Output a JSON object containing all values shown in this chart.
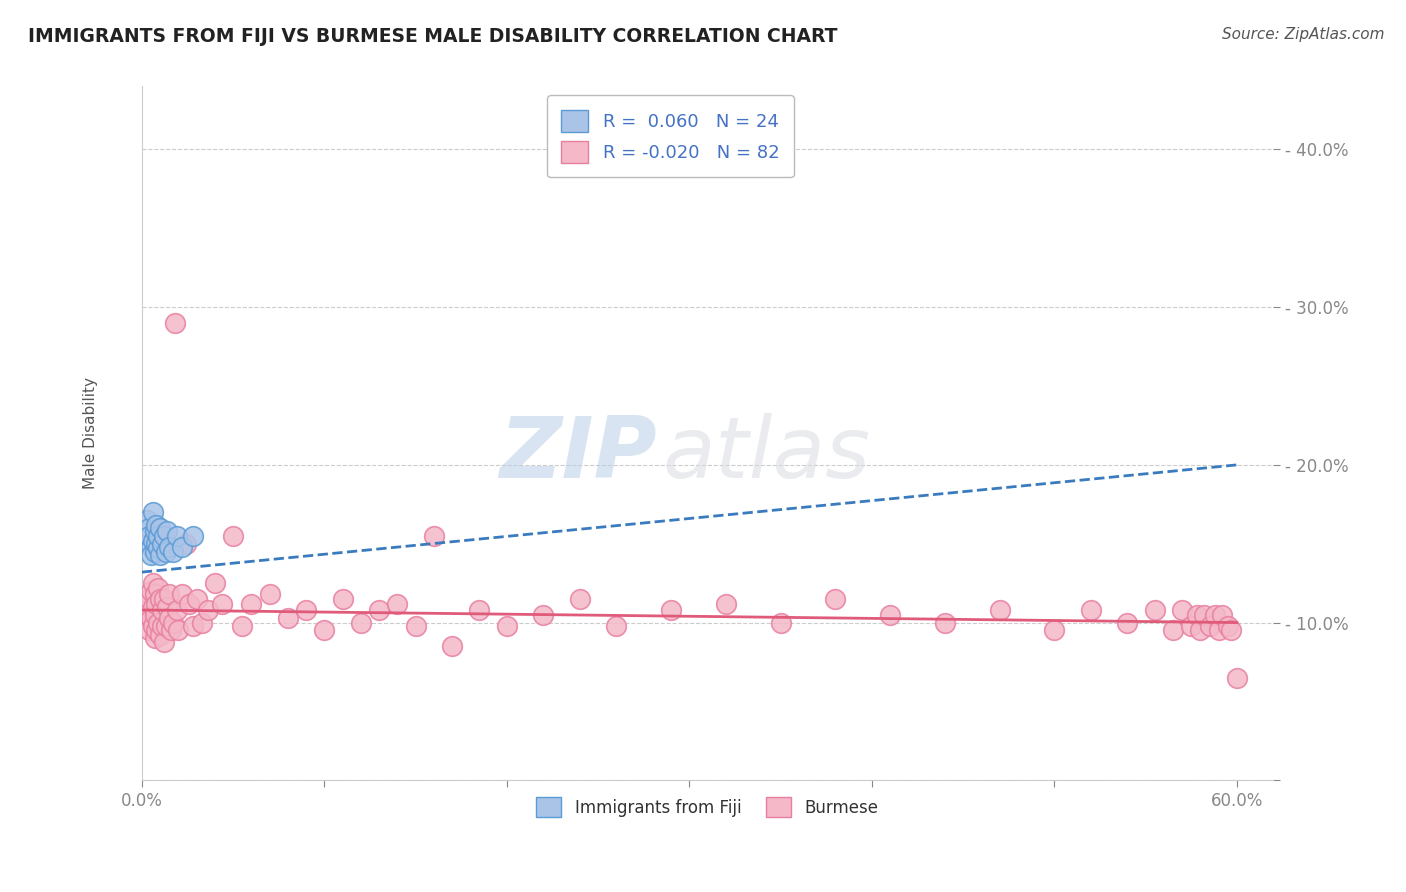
{
  "title": "IMMIGRANTS FROM FIJI VS BURMESE MALE DISABILITY CORRELATION CHART",
  "source": "Source: ZipAtlas.com",
  "ylabel_label": "Male Disability",
  "xlim": [
    0.0,
    0.62
  ],
  "ylim": [
    0.0,
    0.44
  ],
  "grid_color": "#cccccc",
  "background_color": "#ffffff",
  "fiji_color": "#aac4e8",
  "fiji_edge_color": "#5b9bd5",
  "burmese_color": "#f4b8c8",
  "burmese_edge_color": "#e87fa0",
  "fiji_R": 0.06,
  "fiji_N": 24,
  "burmese_R": -0.02,
  "burmese_N": 82,
  "fiji_trendline_color": "#3a7bbf",
  "burmese_trendline_color": "#e05a7a",
  "watermark_zip": "ZIP",
  "watermark_atlas": "atlas",
  "fiji_x": [
    0.003,
    0.004,
    0.004,
    0.005,
    0.005,
    0.006,
    0.006,
    0.007,
    0.007,
    0.008,
    0.008,
    0.009,
    0.009,
    0.01,
    0.01,
    0.011,
    0.012,
    0.013,
    0.014,
    0.015,
    0.017,
    0.019,
    0.022,
    0.028
  ],
  "fiji_y": [
    0.165,
    0.16,
    0.155,
    0.148,
    0.143,
    0.17,
    0.152,
    0.145,
    0.158,
    0.15,
    0.162,
    0.147,
    0.155,
    0.143,
    0.16,
    0.15,
    0.155,
    0.145,
    0.158,
    0.148,
    0.145,
    0.155,
    0.148,
    0.155
  ],
  "burmese_x": [
    0.003,
    0.004,
    0.004,
    0.005,
    0.005,
    0.006,
    0.006,
    0.006,
    0.007,
    0.007,
    0.007,
    0.008,
    0.008,
    0.009,
    0.009,
    0.01,
    0.01,
    0.011,
    0.011,
    0.012,
    0.012,
    0.013,
    0.014,
    0.015,
    0.015,
    0.016,
    0.017,
    0.018,
    0.019,
    0.02,
    0.022,
    0.024,
    0.026,
    0.028,
    0.03,
    0.033,
    0.036,
    0.04,
    0.044,
    0.05,
    0.055,
    0.06,
    0.07,
    0.08,
    0.09,
    0.1,
    0.11,
    0.12,
    0.13,
    0.14,
    0.15,
    0.16,
    0.17,
    0.185,
    0.2,
    0.22,
    0.24,
    0.26,
    0.29,
    0.32,
    0.35,
    0.38,
    0.41,
    0.44,
    0.47,
    0.5,
    0.52,
    0.54,
    0.555,
    0.565,
    0.57,
    0.575,
    0.578,
    0.58,
    0.582,
    0.585,
    0.588,
    0.59,
    0.592,
    0.595,
    0.597,
    0.6
  ],
  "burmese_y": [
    0.108,
    0.115,
    0.095,
    0.103,
    0.12,
    0.098,
    0.11,
    0.125,
    0.09,
    0.105,
    0.118,
    0.095,
    0.112,
    0.1,
    0.122,
    0.092,
    0.115,
    0.098,
    0.108,
    0.088,
    0.115,
    0.098,
    0.11,
    0.103,
    0.118,
    0.095,
    0.1,
    0.29,
    0.108,
    0.095,
    0.118,
    0.15,
    0.112,
    0.098,
    0.115,
    0.1,
    0.108,
    0.125,
    0.112,
    0.155,
    0.098,
    0.112,
    0.118,
    0.103,
    0.108,
    0.095,
    0.115,
    0.1,
    0.108,
    0.112,
    0.098,
    0.155,
    0.085,
    0.108,
    0.098,
    0.105,
    0.115,
    0.098,
    0.108,
    0.112,
    0.1,
    0.115,
    0.105,
    0.1,
    0.108,
    0.095,
    0.108,
    0.1,
    0.108,
    0.095,
    0.108,
    0.098,
    0.105,
    0.095,
    0.105,
    0.098,
    0.105,
    0.095,
    0.105,
    0.098,
    0.095,
    0.065
  ],
  "fiji_trend_x0": 0.0,
  "fiji_trend_y0": 0.132,
  "fiji_trend_x1": 0.6,
  "fiji_trend_y1": 0.2,
  "burmese_trend_x0": 0.0,
  "burmese_trend_y0": 0.108,
  "burmese_trend_x1": 0.6,
  "burmese_trend_y1": 0.1
}
